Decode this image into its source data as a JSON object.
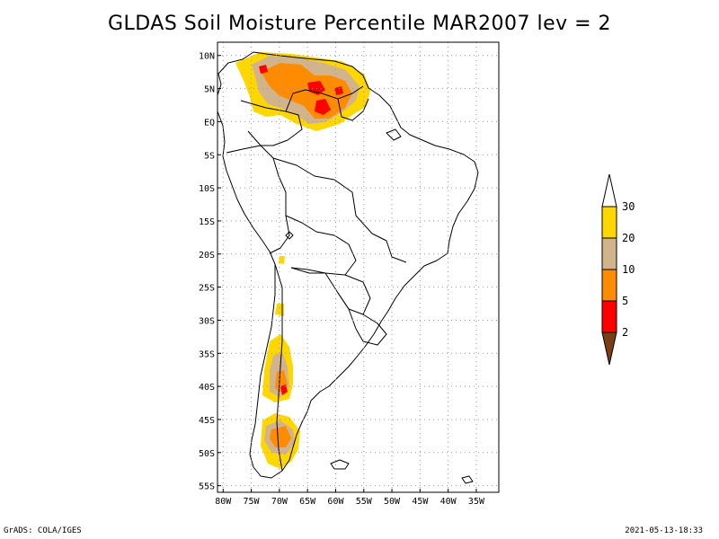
{
  "title": "GLDAS Soil Moisture Percentile MAR2007 lev = 2",
  "footer": {
    "left": "GrADS: COLA/IGES",
    "right": "2021-05-13-18:33"
  },
  "map": {
    "projection": "lat-lon",
    "lon_range": [
      -81,
      -31
    ],
    "lat_range": [
      -56,
      12
    ],
    "grid": "dotted",
    "lat_ticks": [
      {
        "value": 10,
        "label": "10N"
      },
      {
        "value": 5,
        "label": "5N"
      },
      {
        "value": 0,
        "label": "EQ"
      },
      {
        "value": -5,
        "label": "5S"
      },
      {
        "value": -10,
        "label": "10S"
      },
      {
        "value": -15,
        "label": "15S"
      },
      {
        "value": -20,
        "label": "20S"
      },
      {
        "value": -25,
        "label": "25S"
      },
      {
        "value": -30,
        "label": "30S"
      },
      {
        "value": -35,
        "label": "35S"
      },
      {
        "value": -40,
        "label": "40S"
      },
      {
        "value": -45,
        "label": "45S"
      },
      {
        "value": -50,
        "label": "50S"
      },
      {
        "value": -55,
        "label": "55S"
      }
    ],
    "lon_ticks": [
      {
        "value": -80,
        "label": "80W"
      },
      {
        "value": -75,
        "label": "75W"
      },
      {
        "value": -70,
        "label": "70W"
      },
      {
        "value": -65,
        "label": "65W"
      },
      {
        "value": -60,
        "label": "60W"
      },
      {
        "value": -55,
        "label": "55W"
      },
      {
        "value": -50,
        "label": "50W"
      },
      {
        "value": -45,
        "label": "45W"
      },
      {
        "value": -40,
        "label": "40W"
      },
      {
        "value": -35,
        "label": "35W"
      }
    ]
  },
  "colorbar": {
    "levels": [
      {
        "color": "#7a3e12",
        "label": "2"
      },
      {
        "color": "#ff0000",
        "label": "5"
      },
      {
        "color": "#ff8c00",
        "label": "10"
      },
      {
        "color": "#d2b48c",
        "label": "20"
      },
      {
        "color": "#ffd700",
        "label": "30"
      },
      {
        "color": "#ffffff",
        "label": ""
      }
    ]
  },
  "colors": {
    "yellow": "#ffd700",
    "tan": "#d2b48c",
    "orange": "#ff8c00",
    "red": "#ff0000"
  }
}
